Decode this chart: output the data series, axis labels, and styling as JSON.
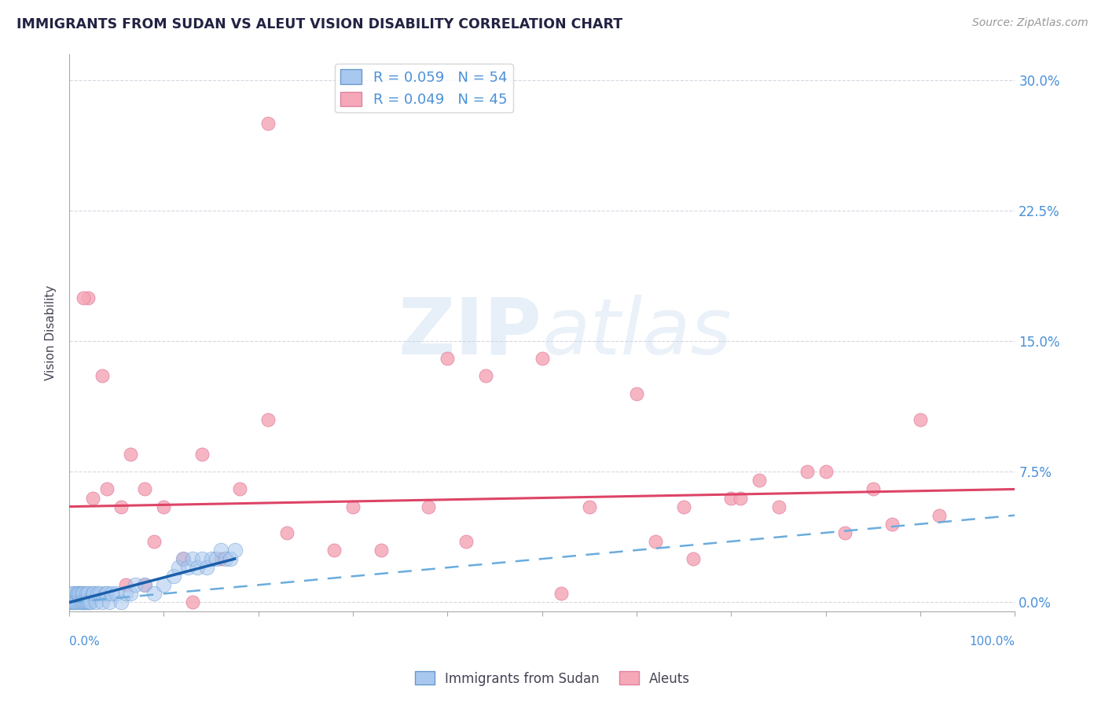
{
  "title": "IMMIGRANTS FROM SUDAN VS ALEUT VISION DISABILITY CORRELATION CHART",
  "source": "Source: ZipAtlas.com",
  "ylabel": "Vision Disability",
  "ytick_labels": [
    "0.0%",
    "7.5%",
    "15.0%",
    "22.5%",
    "30.0%"
  ],
  "ytick_values": [
    0.0,
    0.075,
    0.15,
    0.225,
    0.3
  ],
  "xmin": 0.0,
  "xmax": 1.0,
  "ymin": -0.005,
  "ymax": 0.315,
  "legend_r_blue": "R = 0.059",
  "legend_n_blue": "N = 54",
  "legend_r_pink": "R = 0.049",
  "legend_n_pink": "N = 45",
  "blue_scatter_color": "#a8c8f0",
  "blue_edge_color": "#6699cc",
  "pink_scatter_color": "#f5a8b8",
  "pink_edge_color": "#e080a0",
  "blue_line_color": "#1a5faa",
  "blue_dash_color": "#6aacdd",
  "pink_line_color": "#dd4466",
  "title_color": "#222244",
  "axis_label_color": "#4a90d9",
  "background_color": "#ffffff",
  "grid_color": "#ccccdd",
  "aleuts_points": [
    [
      0.02,
      0.175
    ],
    [
      0.21,
      0.275
    ],
    [
      0.015,
      0.175
    ],
    [
      0.035,
      0.13
    ],
    [
      0.04,
      0.065
    ],
    [
      0.055,
      0.055
    ],
    [
      0.065,
      0.085
    ],
    [
      0.08,
      0.065
    ],
    [
      0.09,
      0.035
    ],
    [
      0.1,
      0.055
    ],
    [
      0.12,
      0.025
    ],
    [
      0.14,
      0.085
    ],
    [
      0.16,
      0.025
    ],
    [
      0.18,
      0.065
    ],
    [
      0.21,
      0.105
    ],
    [
      0.23,
      0.04
    ],
    [
      0.28,
      0.03
    ],
    [
      0.3,
      0.055
    ],
    [
      0.33,
      0.03
    ],
    [
      0.38,
      0.055
    ],
    [
      0.4,
      0.14
    ],
    [
      0.42,
      0.035
    ],
    [
      0.44,
      0.13
    ],
    [
      0.5,
      0.14
    ],
    [
      0.52,
      0.005
    ],
    [
      0.55,
      0.055
    ],
    [
      0.6,
      0.12
    ],
    [
      0.62,
      0.035
    ],
    [
      0.65,
      0.055
    ],
    [
      0.66,
      0.025
    ],
    [
      0.7,
      0.06
    ],
    [
      0.71,
      0.06
    ],
    [
      0.73,
      0.07
    ],
    [
      0.75,
      0.055
    ],
    [
      0.78,
      0.075
    ],
    [
      0.8,
      0.075
    ],
    [
      0.82,
      0.04
    ],
    [
      0.85,
      0.065
    ],
    [
      0.87,
      0.045
    ],
    [
      0.9,
      0.105
    ],
    [
      0.92,
      0.05
    ],
    [
      0.025,
      0.06
    ],
    [
      0.06,
      0.01
    ],
    [
      0.08,
      0.01
    ],
    [
      0.13,
      0.0
    ]
  ],
  "sudan_points": [
    [
      0.0,
      0.0
    ],
    [
      0.002,
      0.0
    ],
    [
      0.003,
      0.005
    ],
    [
      0.004,
      0.0
    ],
    [
      0.005,
      0.005
    ],
    [
      0.006,
      0.0
    ],
    [
      0.007,
      0.0
    ],
    [
      0.008,
      0.005
    ],
    [
      0.009,
      0.005
    ],
    [
      0.01,
      0.0
    ],
    [
      0.011,
      0.005
    ],
    [
      0.012,
      0.0
    ],
    [
      0.013,
      0.005
    ],
    [
      0.014,
      0.0
    ],
    [
      0.015,
      0.005
    ],
    [
      0.016,
      0.0
    ],
    [
      0.017,
      0.0
    ],
    [
      0.018,
      0.005
    ],
    [
      0.019,
      0.0
    ],
    [
      0.02,
      0.005
    ],
    [
      0.021,
      0.0
    ],
    [
      0.022,
      0.0
    ],
    [
      0.025,
      0.005
    ],
    [
      0.026,
      0.005
    ],
    [
      0.028,
      0.0
    ],
    [
      0.03,
      0.005
    ],
    [
      0.032,
      0.005
    ],
    [
      0.035,
      0.0
    ],
    [
      0.038,
      0.005
    ],
    [
      0.04,
      0.005
    ],
    [
      0.042,
      0.0
    ],
    [
      0.045,
      0.005
    ],
    [
      0.05,
      0.005
    ],
    [
      0.055,
      0.0
    ],
    [
      0.06,
      0.005
    ],
    [
      0.065,
      0.005
    ],
    [
      0.07,
      0.01
    ],
    [
      0.08,
      0.01
    ],
    [
      0.09,
      0.005
    ],
    [
      0.1,
      0.01
    ],
    [
      0.11,
      0.015
    ],
    [
      0.115,
      0.02
    ],
    [
      0.12,
      0.025
    ],
    [
      0.125,
      0.02
    ],
    [
      0.13,
      0.025
    ],
    [
      0.135,
      0.02
    ],
    [
      0.14,
      0.025
    ],
    [
      0.145,
      0.02
    ],
    [
      0.15,
      0.025
    ],
    [
      0.155,
      0.025
    ],
    [
      0.16,
      0.03
    ],
    [
      0.165,
      0.025
    ],
    [
      0.17,
      0.025
    ],
    [
      0.175,
      0.03
    ]
  ],
  "blue_solid_trendline": [
    [
      0.0,
      0.0
    ],
    [
      0.175,
      0.025
    ]
  ],
  "blue_dash_trendline": [
    [
      0.0,
      0.0
    ],
    [
      1.0,
      0.05
    ]
  ],
  "pink_solid_trendline": [
    [
      0.0,
      0.055
    ],
    [
      1.0,
      0.065
    ]
  ]
}
